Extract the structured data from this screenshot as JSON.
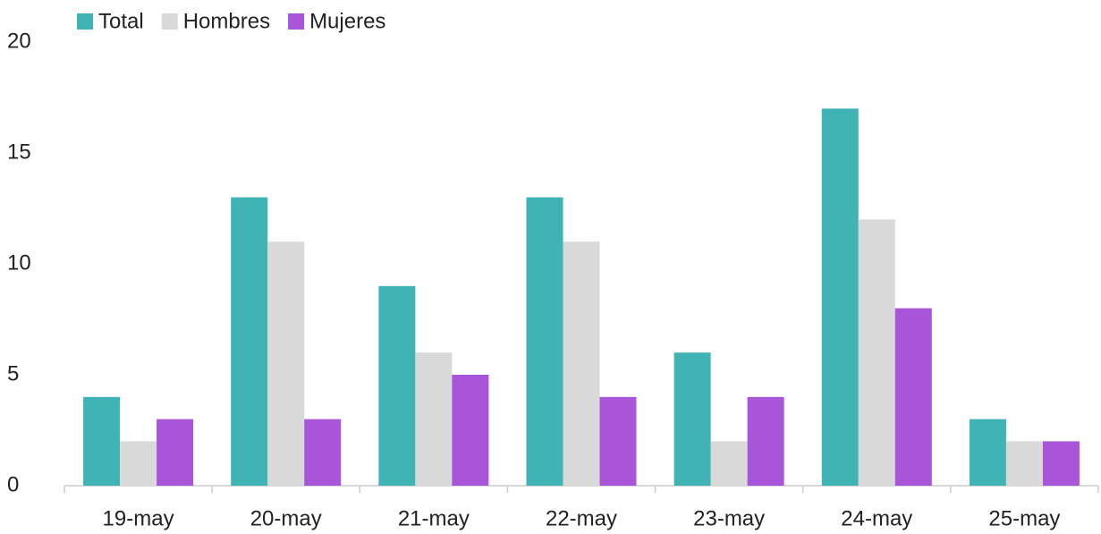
{
  "chart_data": {
    "type": "bar",
    "categories": [
      "19-may",
      "20-may",
      "21-may",
      "22-may",
      "23-may",
      "24-may",
      "25-may"
    ],
    "series": [
      {
        "name": "Total",
        "color": "#40b4b4",
        "values": [
          4,
          13,
          9,
          13,
          6,
          17,
          3
        ]
      },
      {
        "name": "Hombres",
        "color": "#d9d9d9",
        "values": [
          2,
          11,
          6,
          11,
          2,
          12,
          2
        ]
      },
      {
        "name": "Mujeres",
        "color": "#a855d9",
        "values": [
          3,
          3,
          5,
          4,
          4,
          8,
          2
        ]
      }
    ],
    "ylim": [
      0,
      20
    ],
    "yticks": [
      0,
      5,
      10,
      15,
      20
    ],
    "grid": false,
    "legend": "top-left"
  }
}
